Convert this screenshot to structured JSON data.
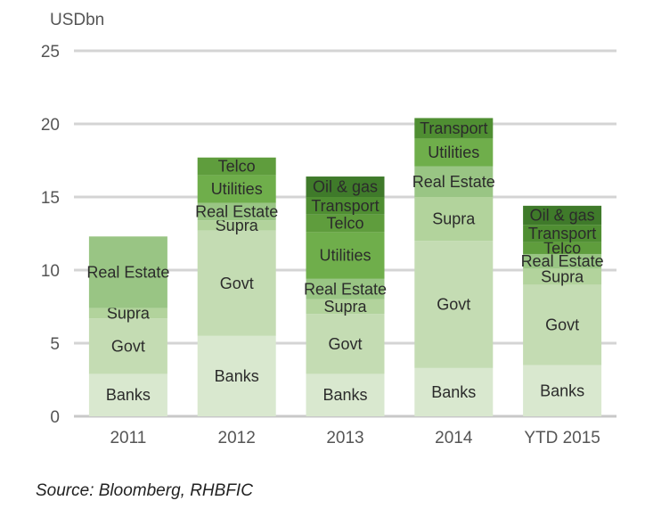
{
  "chart_data": {
    "type": "stacked-bar",
    "ylabel": "USDbn",
    "ylim": [
      0,
      25
    ],
    "yticks": [
      0,
      5,
      10,
      15,
      20,
      25
    ],
    "grid": true,
    "categories": [
      "2011",
      "2012",
      "2013",
      "2014",
      "YTD 2015"
    ],
    "bars": [
      {
        "category": "2011",
        "segments": [
          {
            "label": "Banks",
            "value": 2.9
          },
          {
            "label": "Govt",
            "value": 3.8
          },
          {
            "label": "Supra",
            "value": 0.7
          },
          {
            "label": "Real Estate",
            "value": 4.9
          }
        ]
      },
      {
        "category": "2012",
        "segments": [
          {
            "label": "Banks",
            "value": 5.5
          },
          {
            "label": "Govt",
            "value": 7.2
          },
          {
            "label": "Supra",
            "value": 0.7
          },
          {
            "label": "Real Estate",
            "value": 1.2
          },
          {
            "label": "Utilities",
            "value": 1.9
          },
          {
            "label": "Telco",
            "value": 1.2
          }
        ]
      },
      {
        "category": "2013",
        "segments": [
          {
            "label": "Banks",
            "value": 2.9
          },
          {
            "label": "Govt",
            "value": 4.1
          },
          {
            "label": "Supra",
            "value": 1.0
          },
          {
            "label": "Real Estate",
            "value": 1.4
          },
          {
            "label": "Utilities",
            "value": 3.2
          },
          {
            "label": "Telco",
            "value": 1.2
          },
          {
            "label": "Transport",
            "value": 1.2
          },
          {
            "label": "Oil & gas",
            "value": 1.4
          }
        ]
      },
      {
        "category": "2014",
        "segments": [
          {
            "label": "Banks",
            "value": 3.3
          },
          {
            "label": "Govt",
            "value": 8.7
          },
          {
            "label": "Supra",
            "value": 3.0
          },
          {
            "label": "Real Estate",
            "value": 2.1
          },
          {
            "label": "Utilities",
            "value": 1.9
          },
          {
            "label": "Transport",
            "value": 1.4
          }
        ]
      },
      {
        "category": "YTD 2015",
        "segments": [
          {
            "label": "Banks",
            "value": 3.5
          },
          {
            "label": "Govt",
            "value": 5.5
          },
          {
            "label": "Supra",
            "value": 1.1
          },
          {
            "label": "Real Estate",
            "value": 1.0
          },
          {
            "label": "Telco",
            "value": 0.8
          },
          {
            "label": "Transport",
            "value": 1.2
          },
          {
            "label": "Oil & gas",
            "value": 1.3
          }
        ]
      }
    ],
    "colors": {
      "Banks": "#d9e8cf",
      "Govt": "#c4dcb3",
      "Supra": "#b2d39c",
      "Real Estate": "#99c584",
      "Utilities": "#6fae4b",
      "Telco": "#5f9d3d",
      "Transport": "#4f8e32",
      "Oil & gas": "#3f7a2a"
    }
  },
  "source": "Source: Bloomberg, RHBFIC"
}
